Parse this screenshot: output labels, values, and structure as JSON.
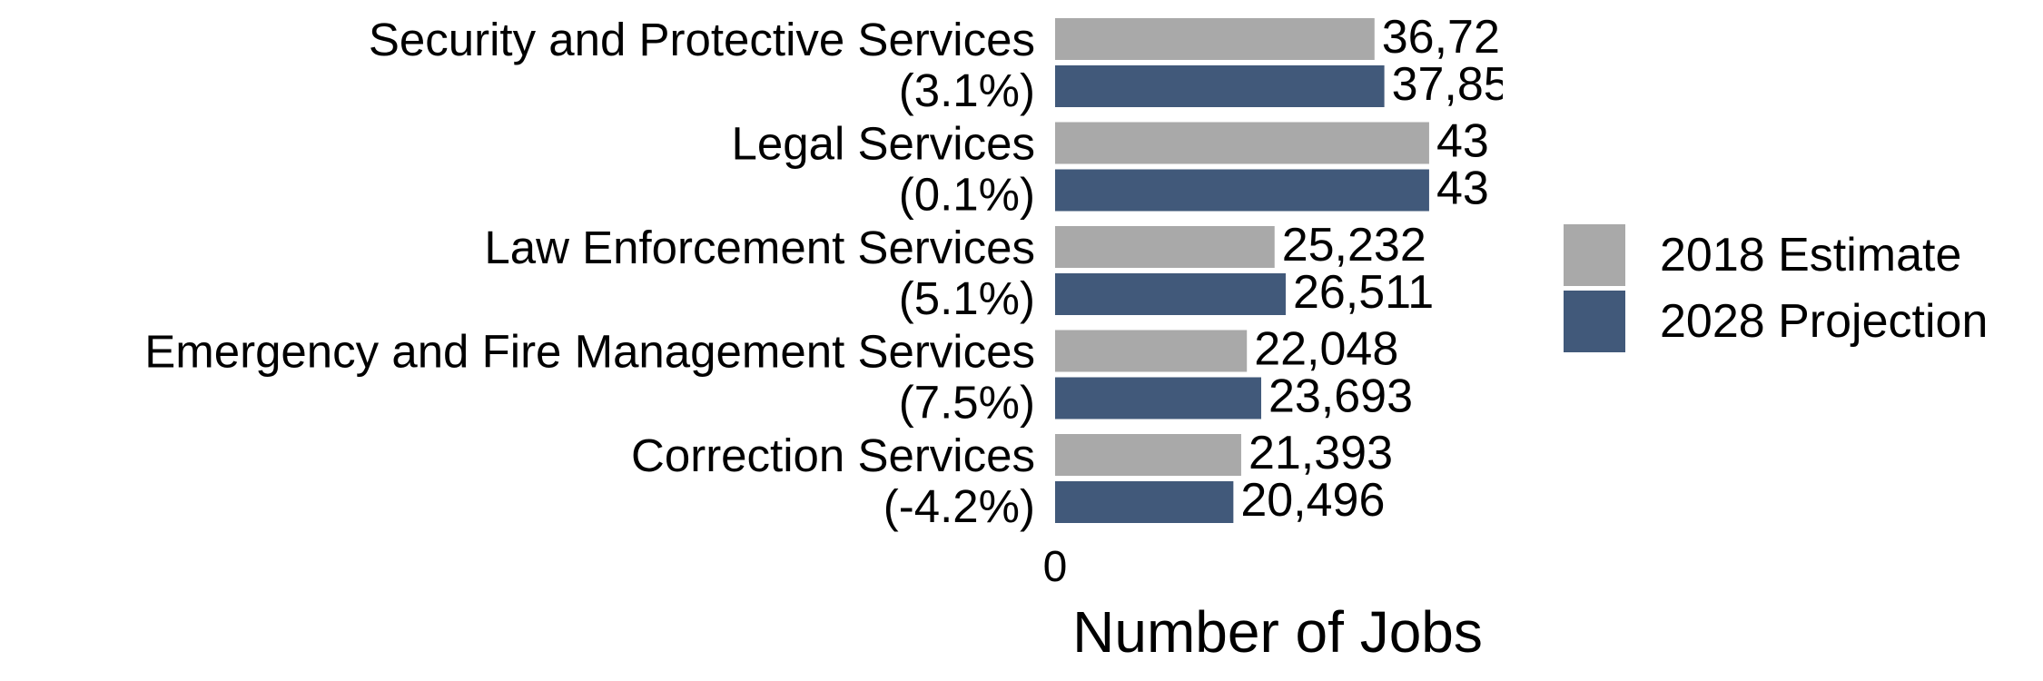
{
  "chart_data": {
    "type": "bar",
    "orientation": "horizontal",
    "title": "",
    "xlabel": "Number of Jobs",
    "ylabel": "",
    "xlim": [
      0,
      46000
    ],
    "x_ticks": [
      "0"
    ],
    "categories": [
      {
        "name": "Security and Protective Services",
        "change": "(3.1%)"
      },
      {
        "name": "Legal Services",
        "change": "(0.1%)"
      },
      {
        "name": "Law Enforcement Services",
        "change": "(5.1%)"
      },
      {
        "name": "Emergency and Fire Management Services",
        "change": "(7.5%)"
      },
      {
        "name": "Correction Services",
        "change": "(-4.2%)"
      }
    ],
    "series": [
      {
        "name": "2018 Estimate",
        "color": "#a9a9a9",
        "values": [
          36720,
          43000,
          25232,
          22048,
          21393
        ],
        "labels": [
          "36,72",
          "43",
          "25,232",
          "22,048",
          "21,393"
        ]
      },
      {
        "name": "2028 Projection",
        "color": "#41597a",
        "values": [
          37850,
          43000,
          26511,
          23693,
          20496
        ],
        "labels": [
          "37,85",
          "43",
          "26,511",
          "23,693",
          "20,496"
        ]
      }
    ],
    "legend": {
      "position": "right"
    },
    "grid": false
  }
}
